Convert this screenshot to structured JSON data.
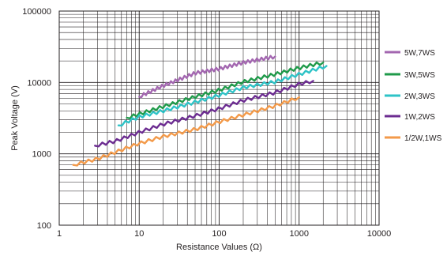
{
  "chart_data": {
    "type": "line",
    "xlabel": "Resistance Values  (Ω)",
    "ylabel": "Peak Voltage (V)",
    "xscale": "log",
    "yscale": "log",
    "xlim": [
      1,
      10000
    ],
    "ylim": [
      100,
      100000
    ],
    "grid": true,
    "legend_position": "right",
    "x_ticks": [
      "1",
      "10",
      "100",
      "1000",
      "10000"
    ],
    "y_ticks": [
      "100",
      "1000",
      "10000",
      "100000"
    ],
    "series": [
      {
        "name": "5W,7WS",
        "color": "#a367b0",
        "points": [
          [
            10,
            6300
          ],
          [
            20,
            9000
          ],
          [
            50,
            13500
          ],
          [
            100,
            15500
          ],
          [
            200,
            19000
          ],
          [
            500,
            23000
          ]
        ]
      },
      {
        "name": "3W,5WS",
        "color": "#1f9a4a",
        "points": [
          [
            7,
            3200
          ],
          [
            10,
            3600
          ],
          [
            20,
            4600
          ],
          [
            50,
            6300
          ],
          [
            100,
            7800
          ],
          [
            200,
            10200
          ],
          [
            500,
            13000
          ],
          [
            1000,
            16000
          ],
          [
            2000,
            19000
          ]
        ]
      },
      {
        "name": "2W,3WS",
        "color": "#2ec3c7",
        "points": [
          [
            5.5,
            2500
          ],
          [
            10,
            3300
          ],
          [
            20,
            4000
          ],
          [
            50,
            5300
          ],
          [
            100,
            6600
          ],
          [
            200,
            8500
          ],
          [
            500,
            10200
          ],
          [
            1000,
            13000
          ],
          [
            2200,
            17000
          ]
        ]
      },
      {
        "name": "1W,2WS",
        "color": "#6c2c91",
        "points": [
          [
            2.8,
            1300
          ],
          [
            5,
            1500
          ],
          [
            10,
            2000
          ],
          [
            20,
            2600
          ],
          [
            50,
            3400
          ],
          [
            100,
            4300
          ],
          [
            200,
            5600
          ],
          [
            500,
            7200
          ],
          [
            1000,
            9500
          ],
          [
            1500,
            10500
          ]
        ]
      },
      {
        "name": "1/2W,1WS",
        "color": "#f39a4a",
        "points": [
          [
            1.5,
            700
          ],
          [
            3,
            850
          ],
          [
            5,
            1050
          ],
          [
            10,
            1400
          ],
          [
            20,
            1750
          ],
          [
            50,
            2200
          ],
          [
            100,
            2800
          ],
          [
            200,
            3500
          ],
          [
            500,
            4700
          ],
          [
            1000,
            6200
          ]
        ]
      }
    ]
  }
}
